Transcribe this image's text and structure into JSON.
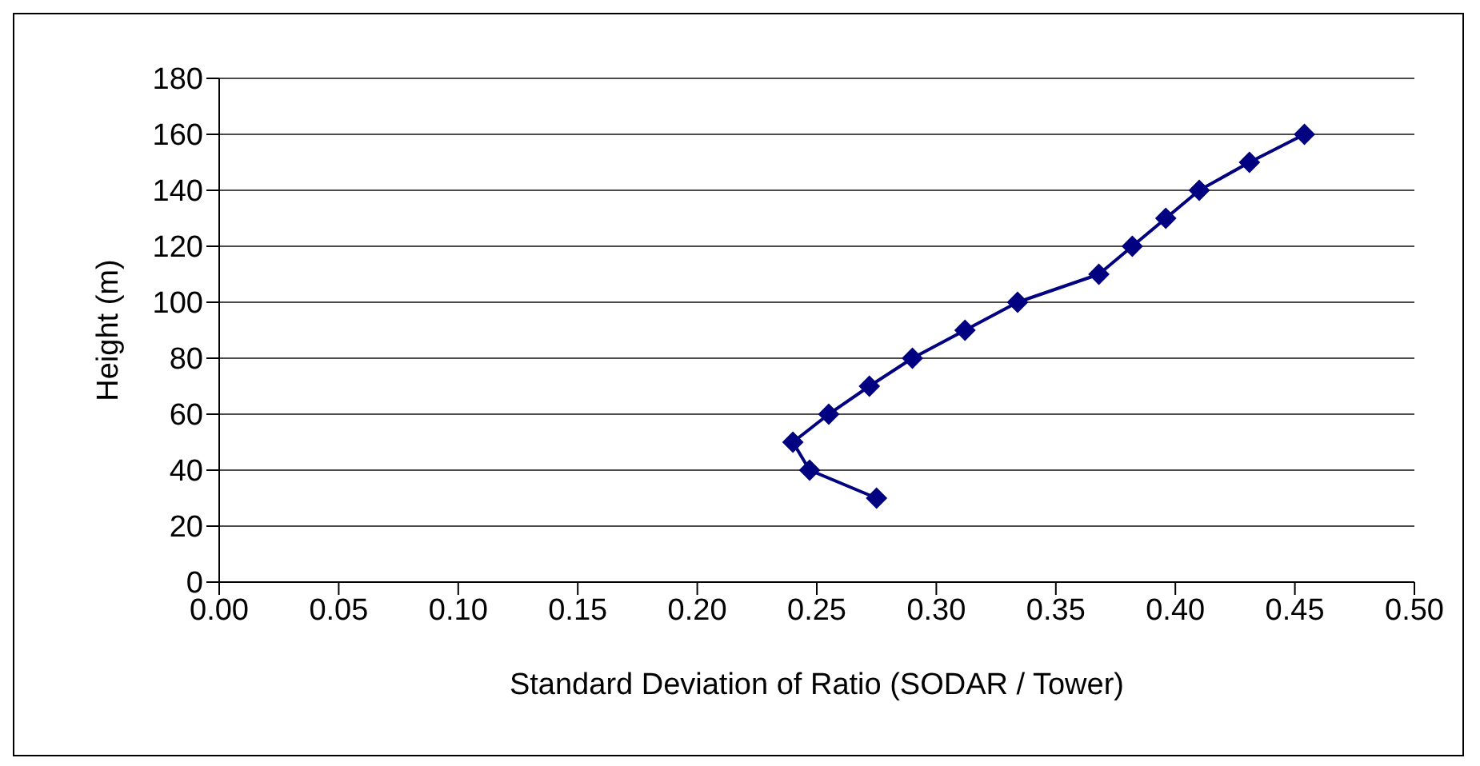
{
  "chart_data": {
    "type": "line",
    "xlabel": "Standard Deviation of Ratio (SODAR / Tower)",
    "ylabel": "Height (m)",
    "series": [
      {
        "color": "#000080",
        "x": [
          0.275,
          0.247,
          0.24,
          0.255,
          0.272,
          0.29,
          0.312,
          0.334,
          0.368,
          0.382,
          0.396,
          0.41,
          0.431,
          0.454
        ],
        "values": [
          30,
          40,
          50,
          60,
          70,
          80,
          90,
          100,
          110,
          120,
          130,
          140,
          150,
          160
        ]
      }
    ],
    "xlim": [
      0,
      0.5
    ],
    "xticks": [
      {
        "value": 0,
        "label": "0.00"
      },
      {
        "value": 0.05,
        "label": "0.05"
      },
      {
        "value": 0.1,
        "label": "0.10"
      },
      {
        "value": 0.15,
        "label": "0.15"
      },
      {
        "value": 0.2,
        "label": "0.20"
      },
      {
        "value": 0.25,
        "label": "0.25"
      },
      {
        "value": 0.3,
        "label": "0.30"
      },
      {
        "value": 0.35,
        "label": "0.35"
      },
      {
        "value": 0.4,
        "label": "0.40"
      },
      {
        "value": 0.45,
        "label": "0.45"
      },
      {
        "value": 0.5,
        "label": "0.50"
      }
    ],
    "ylim": [
      0,
      180
    ],
    "yticks": [
      0,
      20,
      40,
      60,
      80,
      100,
      120,
      140,
      160,
      180
    ],
    "grid": "y",
    "marker": "diamond",
    "line_style": "solid"
  }
}
